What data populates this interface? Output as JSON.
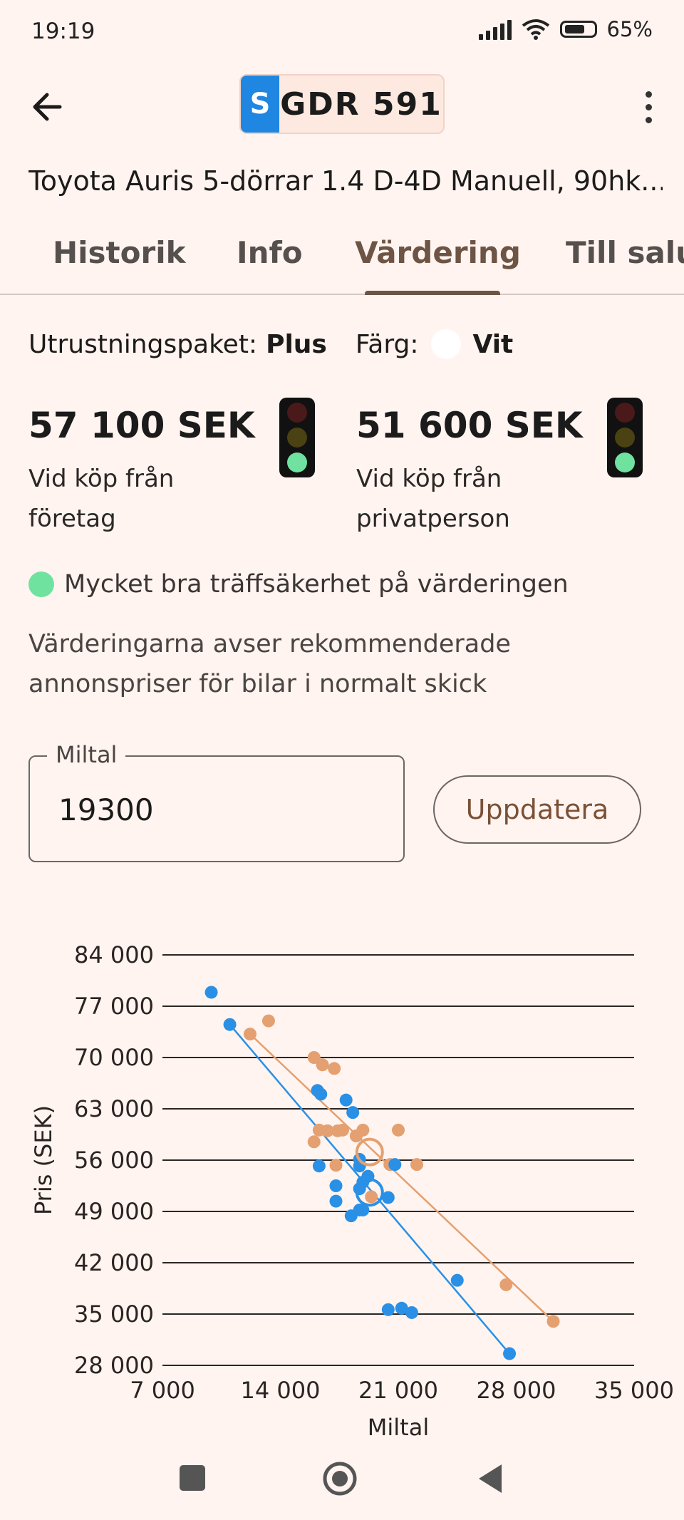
{
  "status_bar": {
    "time": "19:19",
    "battery": "65%",
    "icons": [
      "signal-icon",
      "wifi-icon",
      "battery-icon"
    ]
  },
  "app_bar": {
    "back_icon": "arrow-left-icon",
    "plate_country": "S",
    "plate_number": "GDR 591",
    "menu_icon": "more-vert-icon"
  },
  "car_title": "Toyota Auris 5-dörrar 1.4 D-4D Manuell, 90hk...",
  "tabs": [
    {
      "label": "Historik",
      "active": false
    },
    {
      "label": "Info",
      "active": false
    },
    {
      "label": "Värdering",
      "active": true
    },
    {
      "label": "Till salu",
      "active": false
    }
  ],
  "equipment": {
    "label": "Utrustningspaket:",
    "value": "Plus",
    "color_label": "Färg:",
    "color_value": "Vit"
  },
  "prices": [
    {
      "value": "57 100 SEK",
      "line1": "Vid köp från",
      "line2": "företag"
    },
    {
      "value": "51 600 SEK",
      "line1": "Vid köp från",
      "line2": "privatperson"
    }
  ],
  "accuracy_text": "Mycket bra träffsäkerhet på värderingen",
  "note": "Värderingarna avser rekommenderade annonspriser för bilar i normalt skick",
  "mileage": {
    "label": "Miltal",
    "value": "19300",
    "button": "Uppdatera"
  },
  "colors": {
    "background": "#fff4f0",
    "accent": "#6d5444",
    "blue_series": "#2a90e6",
    "orange_series": "#e4a070",
    "good_green": "#6fe2a0"
  },
  "chart_data": {
    "type": "scatter",
    "xlabel": "Miltal",
    "ylabel": "Pris (SEK)",
    "xlim": [
      7000,
      35000
    ],
    "ylim": [
      28000,
      84000
    ],
    "xticks": [
      "7 000",
      "14 000",
      "21 000",
      "28 000",
      "35 000"
    ],
    "yticks": [
      "84 000",
      "77 000",
      "70 000",
      "63 000",
      "56 000",
      "49 000",
      "42 000",
      "35 000",
      "28 000"
    ],
    "grid": true,
    "series": [
      {
        "color": "#2a90e6",
        "points": [
          [
            9900,
            78900
          ],
          [
            11000,
            74500
          ],
          [
            16200,
            65500
          ],
          [
            16400,
            65000
          ],
          [
            17900,
            64200
          ],
          [
            18300,
            62500
          ],
          [
            16300,
            55200
          ],
          [
            17300,
            52500
          ],
          [
            17300,
            50400
          ],
          [
            18200,
            48400
          ],
          [
            18700,
            49200
          ],
          [
            18900,
            49200
          ],
          [
            18700,
            52100
          ],
          [
            18900,
            53000
          ],
          [
            19200,
            53800
          ],
          [
            18700,
            56100
          ],
          [
            18700,
            55200
          ],
          [
            20400,
            50900
          ],
          [
            20800,
            55400
          ],
          [
            20400,
            35600
          ],
          [
            21200,
            35800
          ],
          [
            21800,
            35200
          ],
          [
            24500,
            39600
          ],
          [
            27600,
            29600
          ]
        ],
        "trend": [
          [
            11000,
            74500
          ],
          [
            27600,
            29600
          ]
        ],
        "highlight": [
          19300,
          51600
        ]
      },
      {
        "color": "#e4a070",
        "points": [
          [
            12200,
            73200
          ],
          [
            13300,
            75000
          ],
          [
            16000,
            70000
          ],
          [
            16500,
            69000
          ],
          [
            17200,
            68500
          ],
          [
            16300,
            60100
          ],
          [
            16800,
            60000
          ],
          [
            16000,
            58500
          ],
          [
            17400,
            60000
          ],
          [
            17700,
            60100
          ],
          [
            18500,
            59300
          ],
          [
            18900,
            60100
          ],
          [
            17300,
            55300
          ],
          [
            19400,
            51000
          ],
          [
            20500,
            55400
          ],
          [
            21000,
            60100
          ],
          [
            22100,
            55400
          ],
          [
            27400,
            39000
          ],
          [
            30200,
            34000
          ]
        ],
        "trend": [
          [
            12200,
            73200
          ],
          [
            30200,
            34000
          ]
        ],
        "highlight": [
          19300,
          57100
        ]
      }
    ]
  }
}
